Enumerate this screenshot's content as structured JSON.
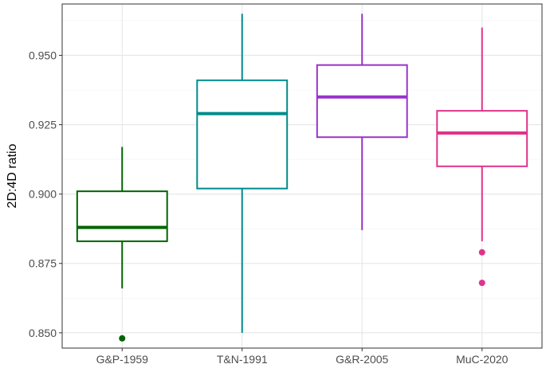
{
  "chart_data": {
    "type": "boxplot",
    "title": "",
    "xlabel": "",
    "ylabel": "2D:4D ratio",
    "ylim": [
      0.8445,
      0.9685
    ],
    "y_ticks": [
      0.85,
      0.875,
      0.9,
      0.925,
      0.95
    ],
    "y_tick_labels": [
      "0.850",
      "0.875",
      "0.900",
      "0.925",
      "0.950"
    ],
    "grid": true,
    "legend": "none",
    "categories": [
      "G&P-1959",
      "T&N-1991",
      "G&R-2005",
      "MuC-2020"
    ],
    "boxes": [
      {
        "category": "G&P-1959",
        "whisker_low": 0.866,
        "q1": 0.883,
        "median": 0.888,
        "q3": 0.901,
        "whisker_high": 0.917,
        "outliers": [
          0.848
        ],
        "color": "#006400"
      },
      {
        "category": "T&N-1991",
        "whisker_low": 0.85,
        "q1": 0.902,
        "median": 0.929,
        "q3": 0.941,
        "whisker_high": 0.965,
        "outliers": [],
        "color": "#008B8B"
      },
      {
        "category": "G&R-2005",
        "whisker_low": 0.887,
        "q1": 0.9205,
        "median": 0.935,
        "q3": 0.9465,
        "whisker_high": 0.965,
        "outliers": [],
        "color": "#9932CC"
      },
      {
        "category": "MuC-2020",
        "whisker_low": 0.883,
        "q1": 0.91,
        "median": 0.922,
        "q3": 0.93,
        "whisker_high": 0.96,
        "outliers": [
          0.879,
          0.868
        ],
        "color": "#E0338A"
      }
    ]
  }
}
